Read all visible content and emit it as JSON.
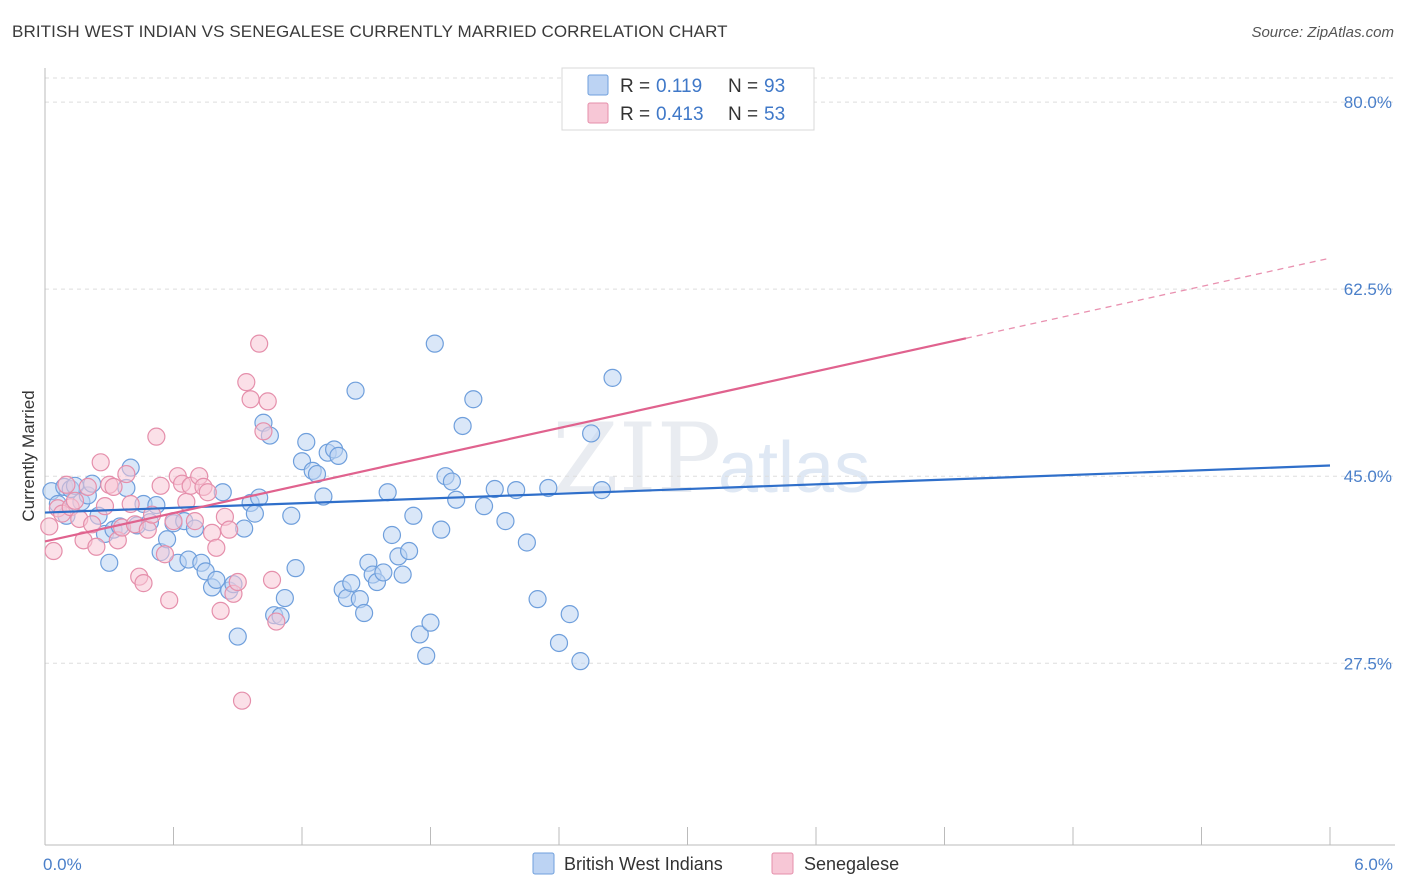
{
  "title": "BRITISH WEST INDIAN VS SENEGALESE CURRENTLY MARRIED CORRELATION CHART",
  "source": "Source: ZipAtlas.com",
  "watermark": {
    "part1": "ZIP",
    "part2": "atlas"
  },
  "colors": {
    "blue_fill": "#bcd3f3",
    "blue_stroke": "#6f9fdc",
    "blue_line": "#2f6fca",
    "pink_fill": "#f7c7d6",
    "pink_stroke": "#e58fab",
    "pink_line": "#e0628e",
    "tick_text": "#4a7fc9",
    "grid": "#dddddd"
  },
  "legend": {
    "rows": [
      {
        "r_label": "R =",
        "r_value": "0.119",
        "n_label": "N =",
        "n_value": "93"
      },
      {
        "r_label": "R =",
        "r_value": "0.413",
        "n_label": "N =",
        "n_value": "53"
      }
    ]
  },
  "bottom_legend": [
    "British West Indians",
    "Senegalese"
  ],
  "chart_data": {
    "type": "scatter",
    "title": "BRITISH WEST INDIAN VS SENEGALESE CURRENTLY MARRIED CORRELATION CHART",
    "xlabel": "",
    "ylabel": "Currently Married",
    "xlim": [
      0,
      6
    ],
    "ylim": [
      10.5,
      83
    ],
    "x_ticks": [
      0,
      6
    ],
    "x_tick_labels": [
      "0.0%",
      "6.0%"
    ],
    "y_ticks": [
      27.5,
      45.0,
      62.5,
      80.0
    ],
    "y_tick_labels": [
      "27.5%",
      "45.0%",
      "62.5%",
      "80.0%"
    ],
    "grid": true,
    "legend_position": "top-center",
    "series": [
      {
        "name": "British West Indians",
        "R": 0.119,
        "N": 93,
        "trend": {
          "x": [
            0,
            6
          ],
          "y": [
            41.6,
            46.0
          ]
        },
        "points": [
          [
            0.03,
            43.6
          ],
          [
            0.06,
            42.4
          ],
          [
            0.09,
            44.0
          ],
          [
            0.1,
            41.3
          ],
          [
            0.12,
            43.8
          ],
          [
            0.14,
            44.1
          ],
          [
            0.17,
            42.6
          ],
          [
            0.2,
            43.2
          ],
          [
            0.22,
            44.3
          ],
          [
            0.25,
            41.3
          ],
          [
            0.28,
            39.6
          ],
          [
            0.3,
            36.9
          ],
          [
            0.32,
            40.0
          ],
          [
            0.35,
            40.3
          ],
          [
            0.38,
            43.9
          ],
          [
            0.4,
            45.8
          ],
          [
            0.43,
            40.4
          ],
          [
            0.46,
            42.4
          ],
          [
            0.49,
            40.7
          ],
          [
            0.52,
            42.3
          ],
          [
            0.54,
            37.9
          ],
          [
            0.57,
            39.1
          ],
          [
            0.6,
            40.6
          ],
          [
            0.62,
            36.9
          ],
          [
            0.65,
            40.8
          ],
          [
            0.67,
            37.2
          ],
          [
            0.7,
            40.1
          ],
          [
            0.73,
            36.9
          ],
          [
            0.75,
            36.1
          ],
          [
            0.78,
            34.6
          ],
          [
            0.8,
            35.3
          ],
          [
            0.83,
            43.5
          ],
          [
            0.86,
            34.3
          ],
          [
            0.88,
            34.9
          ],
          [
            0.9,
            30.0
          ],
          [
            0.93,
            40.1
          ],
          [
            0.96,
            42.5
          ],
          [
            0.98,
            41.5
          ],
          [
            1.0,
            43.0
          ],
          [
            1.02,
            50.0
          ],
          [
            1.05,
            48.8
          ],
          [
            1.07,
            32.0
          ],
          [
            1.1,
            31.9
          ],
          [
            1.12,
            33.6
          ],
          [
            1.15,
            41.3
          ],
          [
            1.17,
            36.4
          ],
          [
            1.2,
            46.4
          ],
          [
            1.22,
            48.2
          ],
          [
            1.25,
            45.5
          ],
          [
            1.27,
            45.2
          ],
          [
            1.3,
            43.1
          ],
          [
            1.32,
            47.2
          ],
          [
            1.35,
            47.5
          ],
          [
            1.37,
            46.9
          ],
          [
            1.39,
            34.4
          ],
          [
            1.41,
            33.6
          ],
          [
            1.43,
            35.0
          ],
          [
            1.45,
            53.0
          ],
          [
            1.47,
            33.5
          ],
          [
            1.49,
            32.2
          ],
          [
            1.51,
            36.9
          ],
          [
            1.53,
            35.8
          ],
          [
            1.55,
            35.1
          ],
          [
            1.58,
            36.0
          ],
          [
            1.6,
            43.5
          ],
          [
            1.62,
            39.5
          ],
          [
            1.65,
            37.5
          ],
          [
            1.67,
            35.8
          ],
          [
            1.7,
            38.0
          ],
          [
            1.72,
            41.3
          ],
          [
            1.75,
            30.2
          ],
          [
            1.78,
            28.2
          ],
          [
            1.8,
            31.3
          ],
          [
            1.82,
            57.4
          ],
          [
            1.85,
            40.0
          ],
          [
            1.87,
            45.0
          ],
          [
            1.9,
            44.5
          ],
          [
            1.92,
            42.8
          ],
          [
            1.95,
            49.7
          ],
          [
            2.0,
            52.2
          ],
          [
            2.05,
            42.2
          ],
          [
            2.1,
            43.8
          ],
          [
            2.15,
            40.8
          ],
          [
            2.2,
            43.7
          ],
          [
            2.25,
            38.8
          ],
          [
            2.3,
            33.5
          ],
          [
            2.35,
            43.9
          ],
          [
            2.4,
            29.4
          ],
          [
            2.45,
            32.1
          ],
          [
            2.5,
            27.7
          ],
          [
            2.55,
            49.0
          ],
          [
            2.6,
            43.7
          ],
          [
            2.65,
            54.2
          ]
        ]
      },
      {
        "name": "Senegalese",
        "R": 0.413,
        "N": 53,
        "trend": {
          "x": [
            0,
            4.3
          ],
          "y": [
            38.9,
            57.9
          ]
        },
        "trend_dashed": {
          "x": [
            4.3,
            6
          ],
          "y": [
            57.9,
            65.4
          ]
        },
        "points": [
          [
            0.02,
            40.3
          ],
          [
            0.04,
            38.0
          ],
          [
            0.06,
            42.0
          ],
          [
            0.08,
            41.5
          ],
          [
            0.1,
            44.2
          ],
          [
            0.12,
            42.1
          ],
          [
            0.14,
            42.7
          ],
          [
            0.16,
            41.0
          ],
          [
            0.18,
            39.0
          ],
          [
            0.2,
            44.0
          ],
          [
            0.22,
            40.5
          ],
          [
            0.24,
            38.4
          ],
          [
            0.26,
            46.3
          ],
          [
            0.28,
            42.2
          ],
          [
            0.3,
            44.2
          ],
          [
            0.32,
            44.0
          ],
          [
            0.34,
            39.0
          ],
          [
            0.36,
            40.2
          ],
          [
            0.38,
            45.2
          ],
          [
            0.4,
            42.4
          ],
          [
            0.42,
            40.5
          ],
          [
            0.44,
            35.6
          ],
          [
            0.46,
            35.0
          ],
          [
            0.48,
            40.0
          ],
          [
            0.5,
            41.4
          ],
          [
            0.52,
            48.7
          ],
          [
            0.54,
            44.1
          ],
          [
            0.56,
            37.7
          ],
          [
            0.58,
            33.4
          ],
          [
            0.6,
            40.8
          ],
          [
            0.62,
            45.0
          ],
          [
            0.64,
            44.3
          ],
          [
            0.66,
            42.6
          ],
          [
            0.68,
            44.1
          ],
          [
            0.7,
            40.8
          ],
          [
            0.72,
            45.0
          ],
          [
            0.74,
            44.0
          ],
          [
            0.76,
            43.5
          ],
          [
            0.78,
            39.7
          ],
          [
            0.8,
            38.3
          ],
          [
            0.82,
            32.4
          ],
          [
            0.84,
            41.2
          ],
          [
            0.86,
            40.0
          ],
          [
            0.88,
            34.0
          ],
          [
            0.9,
            35.1
          ],
          [
            0.92,
            24.0
          ],
          [
            0.94,
            53.8
          ],
          [
            0.96,
            52.2
          ],
          [
            1.0,
            57.4
          ],
          [
            1.02,
            49.2
          ],
          [
            1.04,
            52.0
          ],
          [
            1.06,
            35.3
          ],
          [
            1.08,
            31.4
          ]
        ]
      }
    ]
  }
}
